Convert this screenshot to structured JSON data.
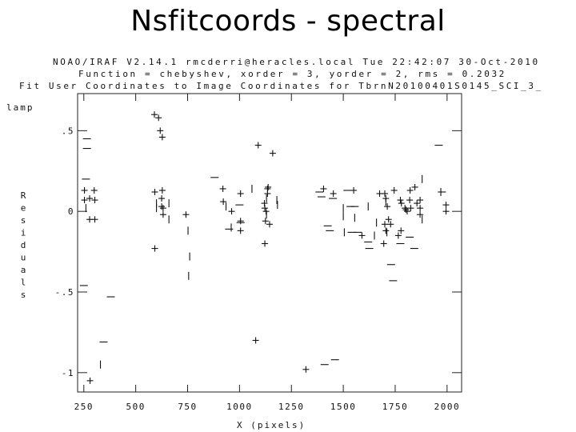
{
  "page": {
    "title": "Nsfitcoords - spectral"
  },
  "plot_header": {
    "line1": "NOAO/IRAF V2.14.1 rmcderri@heracles.local Tue 22:42:07 30-Oct-2010",
    "line2": "Function = chebyshev, xorder = 3, yorder = 2, rms = 0.2032",
    "line3": "Fit User Coordinates to Image Coordinates for TbrnN20100401S0145_SCI_3_"
  },
  "chart_data": {
    "type": "scatter",
    "title": "",
    "subtitle": "lamp",
    "xlabel": "X (pixels)",
    "ylabel": "Residuals",
    "xlim": [
      220,
      2070
    ],
    "ylim": [
      -1.12,
      0.73
    ],
    "grid": false,
    "x_ticks": [
      250,
      500,
      750,
      1000,
      1250,
      1500,
      1750,
      2000
    ],
    "y_ticks": [
      0.5,
      0,
      -0.5,
      -1
    ],
    "y_tick_labels": [
      ".5",
      "0",
      "-.5",
      "-1"
    ],
    "series": [
      {
        "marker": "+",
        "points": [
          [
            253,
            0.13
          ],
          [
            253,
            0.07
          ],
          [
            278,
            -0.05
          ],
          [
            278,
            0.08
          ],
          [
            300,
            0.13
          ],
          [
            303,
            0.07
          ],
          [
            303,
            -0.05
          ],
          [
            280,
            -1.05
          ],
          [
            590,
            0.75
          ],
          [
            590,
            0.6
          ],
          [
            592,
            0.12
          ],
          [
            592,
            -0.23
          ],
          [
            610,
            0.58
          ],
          [
            618,
            0.5
          ],
          [
            628,
            0.46
          ],
          [
            628,
            0.13
          ],
          [
            625,
            0.08
          ],
          [
            625,
            0.03
          ],
          [
            632,
            0.02
          ],
          [
            632,
            -0.02
          ],
          [
            742,
            -0.02
          ],
          [
            920,
            0.14
          ],
          [
            922,
            0.06
          ],
          [
            962,
            0.0
          ],
          [
            1005,
            0.11
          ],
          [
            1005,
            -0.06
          ],
          [
            1005,
            -0.12
          ],
          [
            1090,
            0.41
          ],
          [
            1120,
            0.05
          ],
          [
            1122,
            0.02
          ],
          [
            1122,
            -0.2
          ],
          [
            1125,
            -0.06
          ],
          [
            1128,
            0.0
          ],
          [
            1135,
            0.14
          ],
          [
            1135,
            0.11
          ],
          [
            1138,
            0.15
          ],
          [
            1145,
            -0.08
          ],
          [
            1160,
            0.36
          ],
          [
            1320,
            -0.98
          ],
          [
            1078,
            -0.8
          ],
          [
            1405,
            0.14
          ],
          [
            1452,
            0.11
          ],
          [
            1550,
            0.13
          ],
          [
            1590,
            -0.15
          ],
          [
            1675,
            0.11
          ],
          [
            1700,
            0.11
          ],
          [
            1705,
            0.08
          ],
          [
            1712,
            0.03
          ],
          [
            1718,
            -0.05
          ],
          [
            1728,
            -0.08
          ],
          [
            1745,
            0.13
          ],
          [
            1775,
            0.07
          ],
          [
            1780,
            0.05
          ],
          [
            1797,
            0.02
          ],
          [
            1802,
            0.01
          ],
          [
            1808,
            0.0
          ],
          [
            1820,
            0.07
          ],
          [
            1822,
            0.13
          ],
          [
            1825,
            0.02
          ],
          [
            1845,
            0.15
          ],
          [
            1855,
            0.05
          ],
          [
            1870,
            0.07
          ],
          [
            1870,
            0.02
          ],
          [
            1870,
            -0.02
          ],
          [
            1995,
            0.04
          ],
          [
            1995,
            0.0
          ],
          [
            1700,
            -0.08
          ],
          [
            1705,
            -0.12
          ],
          [
            1695,
            -0.2
          ],
          [
            1765,
            -0.15
          ],
          [
            1778,
            -0.12
          ]
        ]
      },
      {
        "marker": "-",
        "points": [
          [
            265,
            0.45
          ],
          [
            265,
            0.39
          ],
          [
            260,
            0.2
          ],
          [
            250,
            -0.46
          ],
          [
            380,
            -0.53
          ],
          [
            345,
            -0.81
          ],
          [
            880,
            0.21
          ],
          [
            950,
            -0.11
          ],
          [
            1005,
            -0.07
          ],
          [
            1385,
            0.12
          ],
          [
            1395,
            0.09
          ],
          [
            1425,
            -0.09
          ],
          [
            1435,
            -0.12
          ],
          [
            1450,
            0.08
          ],
          [
            1570,
            -0.13
          ],
          [
            1620,
            -0.19
          ],
          [
            1625,
            -0.23
          ],
          [
            1730,
            -0.33
          ],
          [
            1740,
            -0.43
          ],
          [
            1775,
            -0.2
          ],
          [
            1820,
            -0.16
          ],
          [
            1842,
            -0.23
          ],
          [
            1960,
            0.41
          ],
          [
            1975,
            0.12
          ],
          [
            1520,
            0.13
          ],
          [
            1540,
            -0.13
          ],
          [
            1555,
            0.03
          ],
          [
            1535,
            0.03
          ],
          [
            1410,
            -0.95
          ],
          [
            1460,
            -0.92
          ],
          [
            1000,
            0.04
          ]
        ]
      },
      {
        "marker": "|",
        "points": [
          [
            260,
            0.02
          ],
          [
            330,
            -0.95
          ],
          [
            600,
            0.05
          ],
          [
            600,
            0.02
          ],
          [
            660,
            0.05
          ],
          [
            660,
            -0.05
          ],
          [
            752,
            -0.12
          ],
          [
            760,
            -0.28
          ],
          [
            755,
            -0.4
          ],
          [
            935,
            0.03
          ],
          [
            960,
            -0.1
          ],
          [
            1060,
            0.14
          ],
          [
            1130,
            0.08
          ],
          [
            1130,
            -0.02
          ],
          [
            1180,
            0.07
          ],
          [
            1183,
            0.04
          ],
          [
            1500,
            0.02
          ],
          [
            1500,
            -0.03
          ],
          [
            1505,
            -0.13
          ],
          [
            1555,
            -0.04
          ],
          [
            1620,
            0.03
          ],
          [
            1650,
            -0.15
          ],
          [
            1660,
            -0.07
          ],
          [
            1705,
            0.06
          ],
          [
            1710,
            -0.13
          ],
          [
            1880,
            0.2
          ],
          [
            1880,
            -0.05
          ],
          [
            1970,
            0.12
          ]
        ]
      }
    ]
  }
}
